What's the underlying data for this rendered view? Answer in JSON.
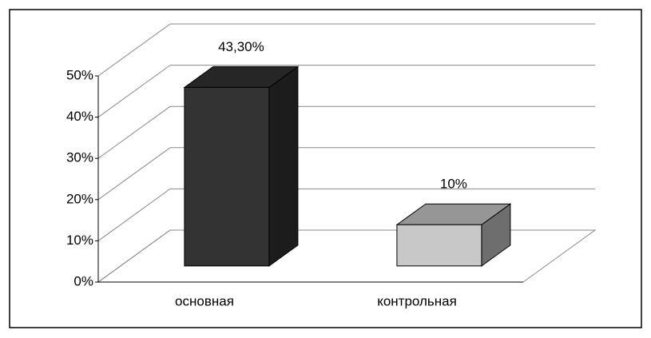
{
  "chart_data": {
    "type": "bar3d",
    "categories": [
      "основная",
      "контрольная"
    ],
    "values": [
      43.3,
      10
    ],
    "value_labels": [
      "43,30%",
      "10%"
    ],
    "colors": [
      "#333333",
      "#c8c8c8"
    ],
    "ylim": [
      0,
      50
    ],
    "yticks": [
      {
        "value": 0,
        "label": "0%"
      },
      {
        "value": 10,
        "label": "10%"
      },
      {
        "value": 20,
        "label": "20%"
      },
      {
        "value": 30,
        "label": "30%"
      },
      {
        "value": 40,
        "label": "40%"
      },
      {
        "value": 50,
        "label": "50%"
      }
    ],
    "grid": true
  }
}
